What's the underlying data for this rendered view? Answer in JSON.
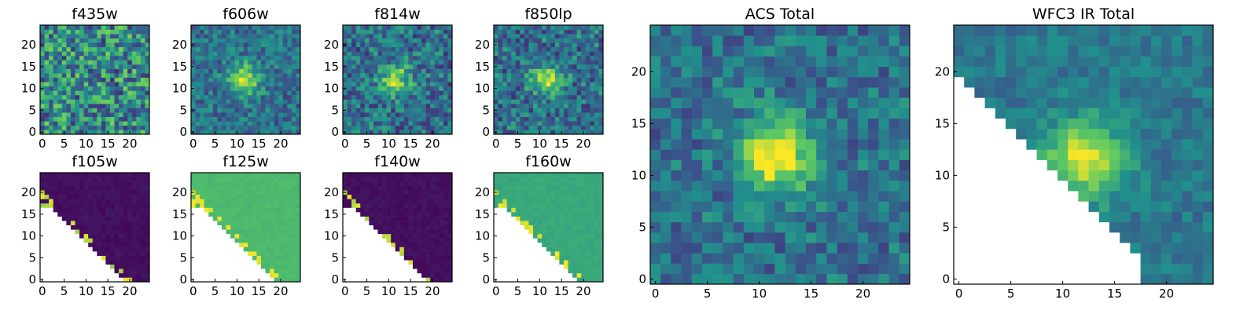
{
  "chart_data": [
    {
      "type": "heatmap",
      "title": "f435w",
      "pattern": "noise",
      "xticks": [
        "0",
        "5",
        "10",
        "15",
        "20"
      ],
      "yticks": [
        "0",
        "5",
        "10",
        "15",
        "20"
      ],
      "xlim": [
        -0.5,
        24.5
      ],
      "ylim": [
        -0.5,
        24.5
      ],
      "grid": false
    },
    {
      "type": "heatmap",
      "title": "f606w",
      "pattern": "blob-faint",
      "xticks": [
        "0",
        "5",
        "10",
        "15",
        "20"
      ],
      "yticks": [
        "0",
        "5",
        "10",
        "15",
        "20"
      ],
      "xlim": [
        -0.5,
        24.5
      ],
      "ylim": [
        -0.5,
        24.5
      ],
      "grid": false
    },
    {
      "type": "heatmap",
      "title": "f814w",
      "pattern": "blob",
      "xticks": [
        "0",
        "5",
        "10",
        "15",
        "20"
      ],
      "yticks": [
        "0",
        "5",
        "10",
        "15",
        "20"
      ],
      "xlim": [
        -0.5,
        24.5
      ],
      "ylim": [
        -0.5,
        24.5
      ],
      "grid": false
    },
    {
      "type": "heatmap",
      "title": "f850lp",
      "pattern": "blob",
      "xticks": [
        "0",
        "5",
        "10",
        "15",
        "20"
      ],
      "yticks": [
        "0",
        "5",
        "10",
        "15",
        "20"
      ],
      "xlim": [
        -0.5,
        24.5
      ],
      "ylim": [
        -0.5,
        24.5
      ],
      "grid": false
    },
    {
      "type": "heatmap",
      "title": "ACS Total",
      "pattern": "blob-strong",
      "xticks": [
        "0",
        "5",
        "10",
        "15",
        "20"
      ],
      "yticks": [
        "0",
        "5",
        "10",
        "15",
        "20"
      ],
      "xlim": [
        -0.5,
        24.5
      ],
      "ylim": [
        -0.5,
        24.5
      ],
      "grid": false
    },
    {
      "type": "heatmap",
      "title": "WFC3 IR Total",
      "pattern": "ir-total",
      "xticks": [
        "0",
        "5",
        "10",
        "15",
        "20"
      ],
      "yticks": [
        "0",
        "5",
        "10",
        "15",
        "20"
      ],
      "xlim": [
        -0.5,
        24.5
      ],
      "ylim": [
        -0.5,
        24.5
      ],
      "grid": false
    },
    {
      "type": "heatmap",
      "title": "f105w",
      "pattern": "ir-dark",
      "xticks": [
        "0",
        "5",
        "10",
        "15",
        "20"
      ],
      "yticks": [
        "0",
        "5",
        "10",
        "15",
        "20"
      ],
      "xlim": [
        -0.5,
        24.5
      ],
      "ylim": [
        -0.5,
        24.5
      ],
      "grid": false
    },
    {
      "type": "heatmap",
      "title": "f125w",
      "pattern": "ir-green",
      "xticks": [
        "0",
        "5",
        "10",
        "15",
        "20"
      ],
      "yticks": [
        "0",
        "5",
        "10",
        "15",
        "20"
      ],
      "xlim": [
        -0.5,
        24.5
      ],
      "ylim": [
        -0.5,
        24.5
      ],
      "grid": false
    },
    {
      "type": "heatmap",
      "title": "f140w",
      "pattern": "ir-dark",
      "xticks": [
        "0",
        "5",
        "10",
        "15",
        "20"
      ],
      "yticks": [
        "0",
        "5",
        "10",
        "15",
        "20"
      ],
      "xlim": [
        -0.5,
        24.5
      ],
      "ylim": [
        -0.5,
        24.5
      ],
      "grid": false
    },
    {
      "type": "heatmap",
      "title": "f160w",
      "pattern": "ir-teal",
      "xticks": [
        "0",
        "5",
        "10",
        "15",
        "20"
      ],
      "yticks": [
        "0",
        "5",
        "10",
        "15",
        "20"
      ],
      "xlim": [
        -0.5,
        24.5
      ],
      "ylim": [
        -0.5,
        24.5
      ],
      "grid": false
    }
  ],
  "colormap": [
    "#440154",
    "#3b528b",
    "#21918c",
    "#5ec962",
    "#fde725"
  ]
}
